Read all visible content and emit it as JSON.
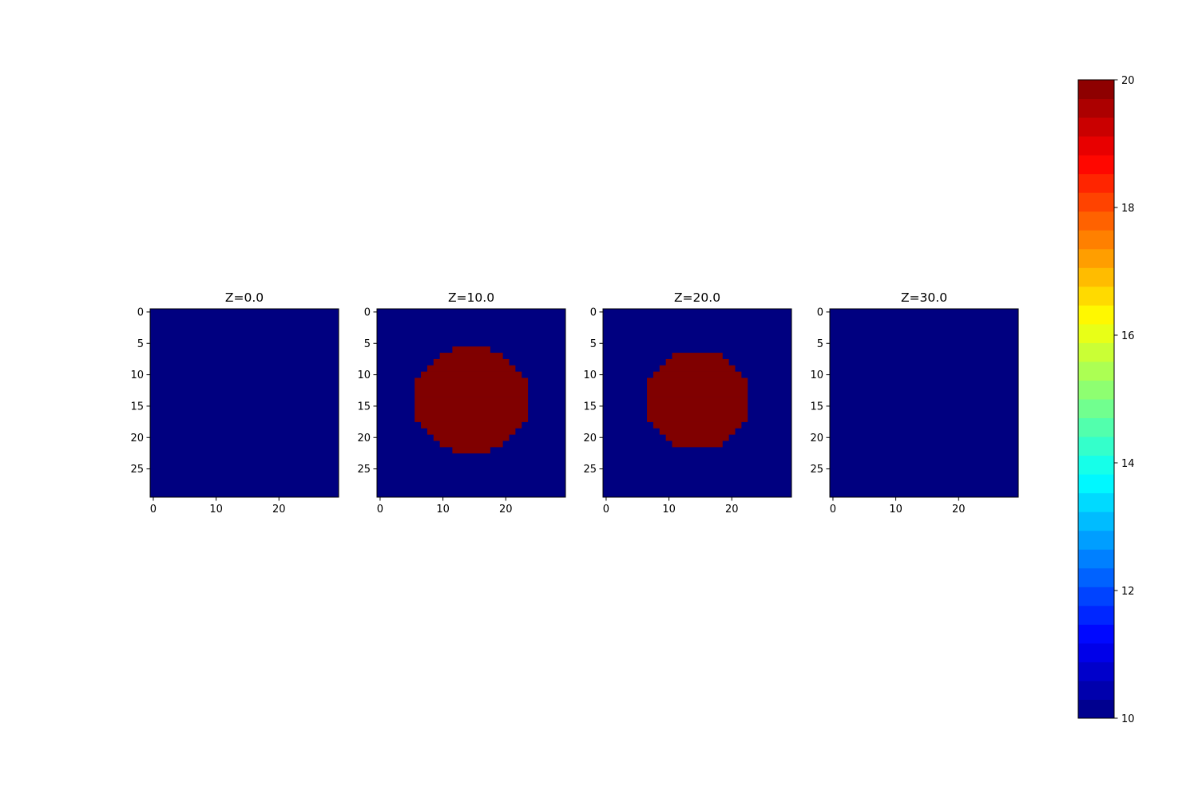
{
  "chart_data": {
    "type": "heatmap",
    "colormap": "jet",
    "vmin": 10,
    "vmax": 20,
    "grid_size": 30,
    "background_value": 10,
    "fill_value": 20,
    "colors": {
      "low": "#000080",
      "high": "#800000"
    },
    "panels": [
      {
        "title": "Z=0.0",
        "filled_rows": []
      },
      {
        "title": "Z=10.0",
        "filled_rows": [
          [
            6,
            12,
            17
          ],
          [
            7,
            10,
            19
          ],
          [
            8,
            9,
            20
          ],
          [
            9,
            8,
            21
          ],
          [
            10,
            7,
            22
          ],
          [
            11,
            6,
            23
          ],
          [
            12,
            6,
            23
          ],
          [
            13,
            6,
            23
          ],
          [
            14,
            6,
            23
          ],
          [
            15,
            6,
            23
          ],
          [
            16,
            6,
            23
          ],
          [
            17,
            6,
            23
          ],
          [
            18,
            7,
            22
          ],
          [
            19,
            8,
            21
          ],
          [
            20,
            9,
            20
          ],
          [
            21,
            10,
            19
          ],
          [
            22,
            12,
            17
          ]
        ]
      },
      {
        "title": "Z=20.0",
        "filled_rows": [
          [
            7,
            11,
            18
          ],
          [
            8,
            10,
            19
          ],
          [
            9,
            9,
            20
          ],
          [
            10,
            8,
            21
          ],
          [
            11,
            7,
            22
          ],
          [
            12,
            7,
            22
          ],
          [
            13,
            7,
            22
          ],
          [
            14,
            7,
            22
          ],
          [
            15,
            7,
            22
          ],
          [
            16,
            7,
            22
          ],
          [
            17,
            7,
            22
          ],
          [
            18,
            8,
            21
          ],
          [
            19,
            9,
            20
          ],
          [
            20,
            10,
            19
          ],
          [
            21,
            11,
            18
          ]
        ]
      },
      {
        "title": "Z=30.0",
        "filled_rows": []
      }
    ],
    "x_ticks": [
      0,
      10,
      20
    ],
    "y_ticks": [
      0,
      5,
      10,
      15,
      20,
      25
    ],
    "colorbar": {
      "ticks": [
        10,
        12,
        14,
        16,
        18,
        20
      ],
      "levels": 34
    }
  }
}
